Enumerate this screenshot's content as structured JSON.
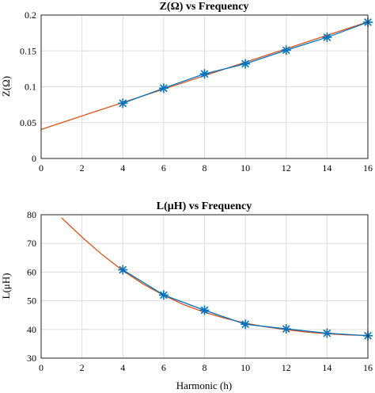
{
  "chart_data": [
    {
      "type": "line",
      "title": "Z(Ω) vs Frequency",
      "xlabel": "",
      "ylabel": "Z(Ω)",
      "xlim": [
        0,
        16
      ],
      "ylim": [
        0,
        0.2
      ],
      "xticks": [
        0,
        2,
        4,
        6,
        8,
        10,
        12,
        14,
        16
      ],
      "yticks": [
        0,
        0.05,
        0.1,
        0.15,
        0.2
      ],
      "yticklabels": [
        "0",
        "0.05",
        "0.1",
        "0.15",
        "0.2"
      ],
      "grid": true,
      "series": [
        {
          "kind": "measured-markers",
          "color": "#0072BD",
          "marker": "asterisk",
          "x": [
            4,
            6,
            8,
            10,
            12,
            14,
            16
          ],
          "values": [
            0.077,
            0.098,
            0.118,
            0.132,
            0.151,
            0.169,
            0.19
          ]
        },
        {
          "kind": "fit-curve",
          "color": "#D95319",
          "x": [
            0,
            16
          ],
          "values": [
            0.0405,
            0.1905
          ]
        }
      ]
    },
    {
      "type": "line",
      "title": "L(μH) vs Frequency",
      "xlabel": "Harmonic (h)",
      "ylabel": "L(μH)",
      "xlim": [
        0,
        16
      ],
      "ylim": [
        30,
        80
      ],
      "xticks": [
        0,
        2,
        4,
        6,
        8,
        10,
        12,
        14,
        16
      ],
      "yticks": [
        30,
        40,
        50,
        60,
        70,
        80
      ],
      "yticklabels": [
        "30",
        "40",
        "50",
        "60",
        "70",
        "80"
      ],
      "grid": true,
      "series": [
        {
          "kind": "measured-markers",
          "color": "#0072BD",
          "marker": "asterisk",
          "x": [
            4,
            6,
            8,
            10,
            12,
            14,
            16
          ],
          "values": [
            60.8,
            52.0,
            46.7,
            41.8,
            40.2,
            38.7,
            37.8
          ]
        },
        {
          "kind": "fit-curve",
          "color": "#D95319",
          "x": [
            1,
            2,
            3,
            4,
            5,
            6,
            7,
            8,
            9,
            10,
            11,
            12,
            13,
            14,
            15,
            16
          ],
          "values": [
            78.9,
            72.2,
            66.0,
            60.5,
            55.8,
            51.9,
            48.6,
            46.0,
            43.9,
            42.2,
            40.9,
            39.9,
            39.1,
            38.5,
            38.1,
            37.9
          ]
        }
      ]
    }
  ]
}
